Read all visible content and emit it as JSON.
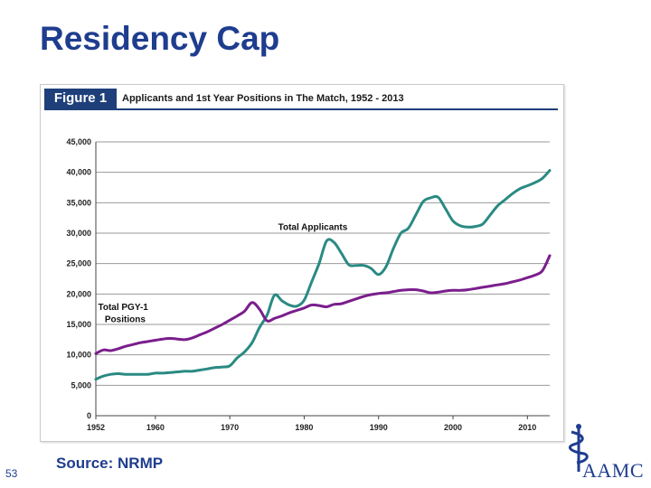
{
  "slide": {
    "title": "Residency Cap",
    "source": "Source: NRMP",
    "page_number": "53",
    "logo_text": "AAMC"
  },
  "figure": {
    "label": "Figure 1",
    "title": "Applicants and 1st Year Positions in The Match, 1952 - 2013"
  },
  "colors": {
    "applicants": "#2a8a83",
    "positions": "#7a1e8c",
    "header": "#1f3f7a",
    "title": "#1f3d8f"
  },
  "chart_data": {
    "type": "line",
    "title": "Applicants and 1st Year Positions in The Match, 1952 - 2013",
    "xlim": [
      1952,
      2013
    ],
    "ylim": [
      0,
      45000
    ],
    "x_ticks": [
      1952,
      1960,
      1970,
      1980,
      1990,
      2000,
      2010
    ],
    "y_ticks": [
      0,
      5000,
      10000,
      15000,
      20000,
      25000,
      30000,
      35000,
      40000,
      45000
    ],
    "y_tick_labels": [
      "0",
      "5,000",
      "10,000",
      "15,000",
      "20,000",
      "25,000",
      "30,000",
      "35,000",
      "40,000",
      "45,000"
    ],
    "grid": true,
    "annotations": [
      {
        "text": "Total Applicants",
        "series": "Total Applicants"
      },
      {
        "text": "Total PGY-1",
        "series": "Total PGY-1 Positions"
      },
      {
        "text": "Positions",
        "series": "Total PGY-1 Positions"
      }
    ],
    "series": [
      {
        "name": "Total Applicants",
        "color": "#2a8a83",
        "x": [
          1952,
          1953,
          1954,
          1955,
          1956,
          1957,
          1958,
          1959,
          1960,
          1961,
          1962,
          1963,
          1964,
          1965,
          1966,
          1967,
          1968,
          1969,
          1970,
          1971,
          1972,
          1973,
          1974,
          1975,
          1976,
          1977,
          1978,
          1979,
          1980,
          1981,
          1982,
          1983,
          1984,
          1985,
          1986,
          1987,
          1988,
          1989,
          1990,
          1991,
          1992,
          1993,
          1994,
          1995,
          1996,
          1997,
          1998,
          1999,
          2000,
          2001,
          2002,
          2003,
          2004,
          2005,
          2006,
          2007,
          2008,
          2009,
          2010,
          2011,
          2012,
          2013
        ],
        "values": [
          6000,
          6500,
          6800,
          6900,
          6800,
          6800,
          6800,
          6800,
          7000,
          7000,
          7100,
          7200,
          7300,
          7300,
          7500,
          7700,
          7900,
          8000,
          8200,
          9500,
          10500,
          12000,
          14500,
          16500,
          19800,
          18900,
          18200,
          18000,
          19000,
          22000,
          25000,
          28700,
          28500,
          26700,
          24800,
          24700,
          24700,
          24200,
          23200,
          24500,
          27500,
          30000,
          30800,
          33000,
          35200,
          35800,
          35900,
          34000,
          32000,
          31200,
          31000,
          31100,
          31500,
          33000,
          34500,
          35500,
          36500,
          37300,
          37800,
          38300,
          39000,
          40300
        ]
      },
      {
        "name": "Total PGY-1 Positions",
        "color": "#7a1e8c",
        "x": [
          1952,
          1953,
          1954,
          1955,
          1956,
          1957,
          1958,
          1959,
          1960,
          1961,
          1962,
          1963,
          1964,
          1965,
          1966,
          1967,
          1968,
          1969,
          1970,
          1971,
          1972,
          1973,
          1974,
          1975,
          1976,
          1977,
          1978,
          1979,
          1980,
          1981,
          1982,
          1983,
          1984,
          1985,
          1986,
          1987,
          1988,
          1989,
          1990,
          1991,
          1992,
          1993,
          1994,
          1995,
          1996,
          1997,
          1998,
          1999,
          2000,
          2001,
          2002,
          2003,
          2004,
          2005,
          2006,
          2007,
          2008,
          2009,
          2010,
          2011,
          2012,
          2013
        ],
        "values": [
          10200,
          10800,
          10700,
          11000,
          11400,
          11700,
          12000,
          12200,
          12400,
          12600,
          12700,
          12600,
          12500,
          12800,
          13300,
          13800,
          14400,
          15000,
          15700,
          16400,
          17200,
          18600,
          17500,
          15600,
          16000,
          16400,
          16900,
          17300,
          17700,
          18200,
          18100,
          17900,
          18300,
          18400,
          18800,
          19200,
          19600,
          19900,
          20100,
          20200,
          20400,
          20600,
          20700,
          20700,
          20500,
          20200,
          20300,
          20500,
          20600,
          20600,
          20700,
          20900,
          21100,
          21300,
          21500,
          21700,
          22000,
          22300,
          22700,
          23100,
          23800,
          26300
        ]
      }
    ]
  }
}
